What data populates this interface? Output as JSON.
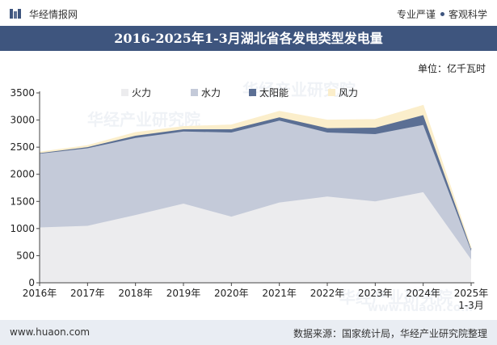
{
  "header": {
    "brand": "华经情报网",
    "slogan_left": "专业严谨",
    "slogan_right": "客观科学"
  },
  "title": "2016-2025年1-3月湖北省各发电类型发电量",
  "unit_label": "单位：亿千瓦时",
  "watermark": {
    "cn": "华经产业研究院",
    "url": "www.huaon.com"
  },
  "colors": {
    "title_bg": "#3e557e",
    "footer_bg": "#e9edf3",
    "thermal": "#ececee",
    "hydro": "#c4cad9",
    "solar": "#5b6f94",
    "wind": "#fbeecb"
  },
  "chart_data": {
    "type": "area",
    "stacked": true,
    "categories": [
      "2016年",
      "2017年",
      "2018年",
      "2019年",
      "2020年",
      "2021年",
      "2022年",
      "2023年",
      "2024年",
      "2025年\n1-3月"
    ],
    "series": [
      {
        "name": "火力",
        "values": [
          1020,
          1050,
          1250,
          1460,
          1220,
          1480,
          1590,
          1500,
          1670,
          430
        ]
      },
      {
        "name": "水力",
        "values": [
          1360,
          1430,
          1420,
          1330,
          1550,
          1510,
          1180,
          1240,
          1240,
          160
        ]
      },
      {
        "name": "太阳能",
        "values": [
          10,
          20,
          40,
          40,
          60,
          60,
          80,
          120,
          180,
          30
        ]
      },
      {
        "name": "风力",
        "values": [
          20,
          30,
          60,
          50,
          80,
          110,
          150,
          150,
          180,
          20
        ]
      }
    ],
    "ylim": [
      0,
      3500
    ],
    "yticks": [
      0,
      500,
      1000,
      1500,
      2000,
      2500,
      3000,
      3500
    ],
    "legend_position": "top",
    "grid": false
  },
  "footer": {
    "website": "www.huaon.com",
    "source": "数据来源：国家统计局，华经产业研究院整理"
  }
}
